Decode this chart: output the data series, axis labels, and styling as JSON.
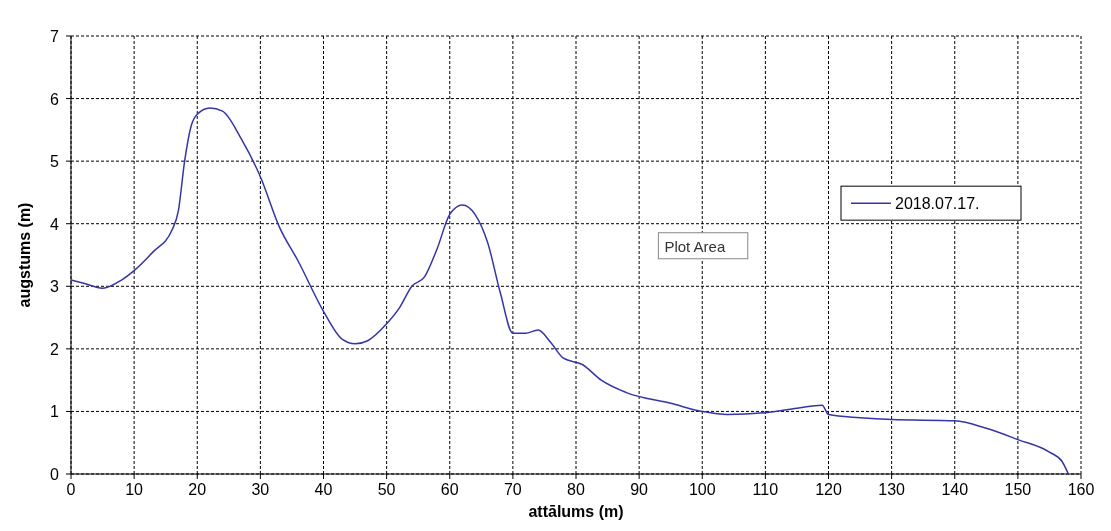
{
  "chart_data": {
    "type": "line",
    "xlabel": "attālums (m)",
    "ylabel": "augstums (m)",
    "xlim": [
      0,
      160
    ],
    "xticks": [
      0,
      10,
      20,
      30,
      40,
      50,
      60,
      70,
      80,
      90,
      100,
      110,
      120,
      130,
      140,
      150,
      160
    ],
    "ylim": [
      0,
      7
    ],
    "yticks": [
      0,
      1,
      2,
      3,
      4,
      5,
      6,
      7
    ],
    "grid": true,
    "legend": "right",
    "marker": "none",
    "line_style": "solid",
    "annotations": [
      "Plot Area"
    ],
    "series": [
      {
        "name": "2018.07.17.",
        "color": "#3535a8",
        "x": [
          0,
          2,
          5,
          8,
          10,
          13,
          16,
          17,
          18,
          19,
          20,
          22,
          24,
          27,
          30,
          33,
          36,
          40,
          43,
          45,
          47,
          50,
          52,
          54,
          56,
          58,
          60,
          62,
          64,
          66,
          68,
          70,
          72,
          74,
          76,
          78,
          81,
          84,
          88,
          95,
          100,
          104,
          110,
          115,
          119,
          120,
          125,
          130,
          140,
          145,
          150,
          155,
          157,
          158
        ],
        "values": [
          3.1,
          3.05,
          2.97,
          3.1,
          3.25,
          3.55,
          3.9,
          4.2,
          5.0,
          5.55,
          5.75,
          5.85,
          5.8,
          5.35,
          4.75,
          3.95,
          3.4,
          2.6,
          2.15,
          2.08,
          2.13,
          2.4,
          2.65,
          3.0,
          3.15,
          3.6,
          4.15,
          4.3,
          4.15,
          3.7,
          2.9,
          2.25,
          2.25,
          2.3,
          2.1,
          1.85,
          1.75,
          1.5,
          1.3,
          1.13,
          1.0,
          0.95,
          0.98,
          1.05,
          1.1,
          0.95,
          0.9,
          0.87,
          0.85,
          0.73,
          0.55,
          0.35,
          0.2,
          0
        ]
      }
    ]
  }
}
